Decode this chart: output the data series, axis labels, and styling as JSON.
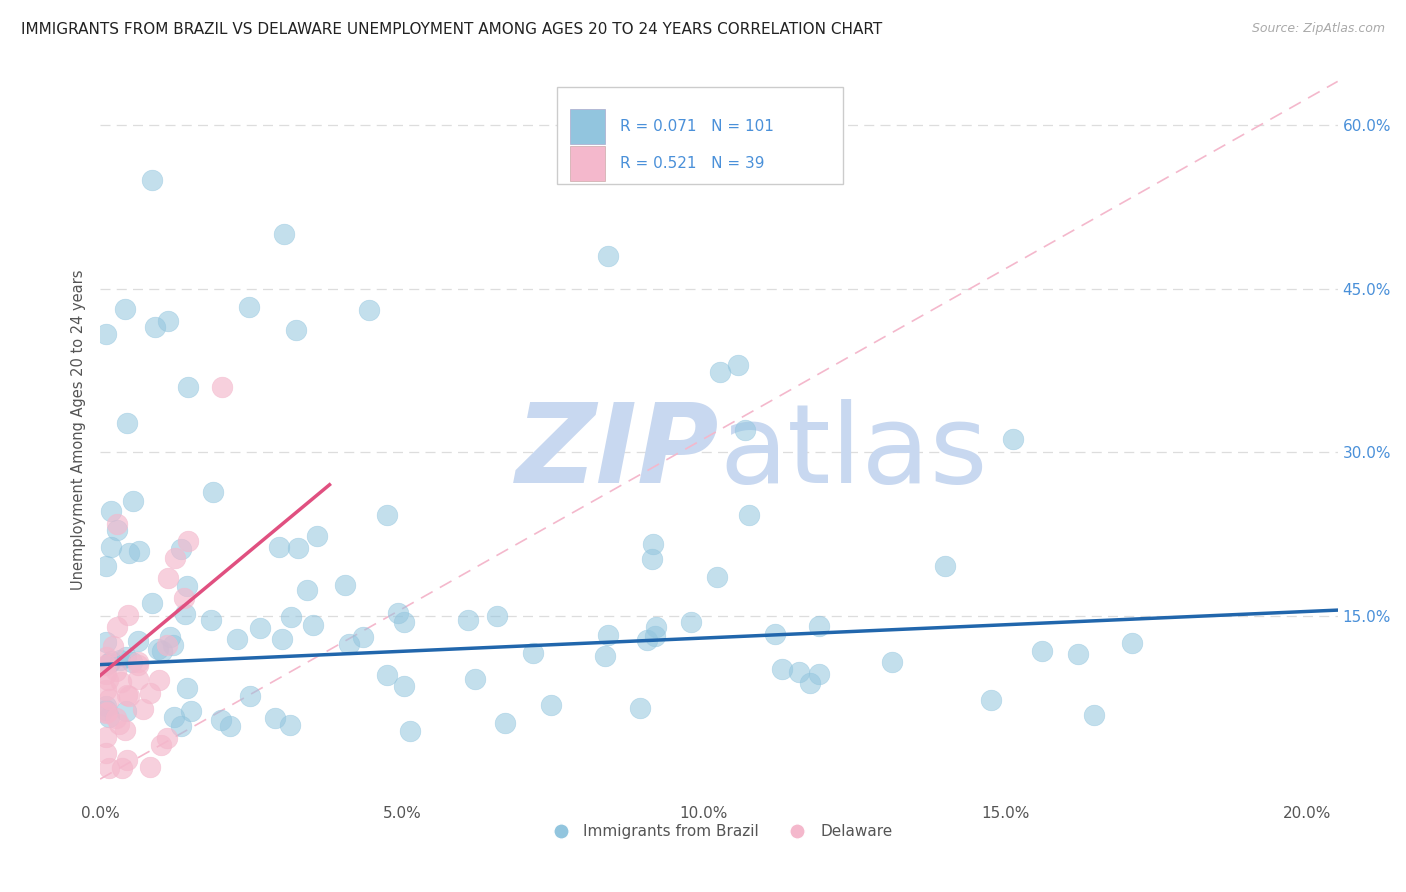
{
  "title": "IMMIGRANTS FROM BRAZIL VS DELAWARE UNEMPLOYMENT AMONG AGES 20 TO 24 YEARS CORRELATION CHART",
  "source": "Source: ZipAtlas.com",
  "ylabel": "Unemployment Among Ages 20 to 24 years",
  "legend_label1": "Immigrants from Brazil",
  "legend_label2": "Delaware",
  "R1": 0.071,
  "N1": 101,
  "R2": 0.521,
  "N2": 39,
  "color1": "#92c5de",
  "color2": "#f4b8cc",
  "trendline_color1": "#2166ac",
  "trendline_color2": "#e05080",
  "refline_color": "#f4b8cc",
  "xlim": [
    0.0,
    0.205
  ],
  "ylim": [
    -0.02,
    0.66
  ],
  "yticks": [
    0.15,
    0.3,
    0.45,
    0.6
  ],
  "ytick_labels": [
    "15.0%",
    "30.0%",
    "45.0%",
    "60.0%"
  ],
  "xticks": [
    0.0,
    0.05,
    0.1,
    0.15,
    0.2
  ],
  "xtick_labels": [
    "0.0%",
    "5.0%",
    "10.0%",
    "15.0%",
    "20.0%"
  ],
  "watermark": "ZIPatlas",
  "watermark_color": "#c8d8f0",
  "legend_color": "#4a90d9",
  "title_color": "#222222",
  "source_color": "#aaaaaa",
  "grid_color": "#dddddd",
  "ylabel_color": "#555555"
}
